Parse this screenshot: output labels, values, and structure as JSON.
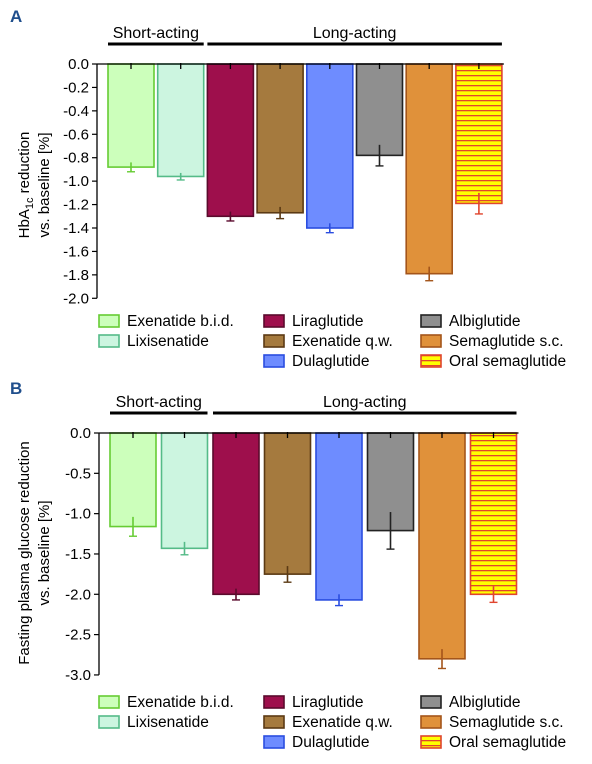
{
  "figure": {
    "panels": [
      {
        "letter": "A",
        "group_short": "Short-acting",
        "group_long": "Long-acting",
        "ylabel_line1": "HbA1c reduction",
        "ylabel_line2": "vs. baseline [%]"
      },
      {
        "letter": "B",
        "group_short": "Short-acting",
        "group_long": "Long-acting",
        "ylabel_line1": "Fasting plasma glucose reduction",
        "ylabel_line2": "vs. baseline [%]"
      }
    ]
  },
  "legend": [
    {
      "name": "Exenatide b.i.d.",
      "fill": "#ccffbb",
      "stroke": "#66cc33",
      "pattern": "solid"
    },
    {
      "name": "Lixisenatide",
      "fill": "#ccf5e0",
      "stroke": "#55bb88",
      "pattern": "solid"
    },
    {
      "name": "Liraglutide",
      "fill": "#9e0f4c",
      "stroke": "#5a0a2c",
      "pattern": "solid"
    },
    {
      "name": "Exenatide q.w.",
      "fill": "#a57a3e",
      "stroke": "#5b3a14",
      "pattern": "solid"
    },
    {
      "name": "Dulaglutide",
      "fill": "#6e8cff",
      "stroke": "#2a4de0",
      "pattern": "solid"
    },
    {
      "name": "Albiglutide",
      "fill": "#8f8f8f",
      "stroke": "#222222",
      "pattern": "solid"
    },
    {
      "name": "Semaglutide s.c.",
      "fill": "#e0913a",
      "stroke": "#a4551a",
      "pattern": "solid"
    },
    {
      "name": "Oral semaglutide",
      "fill": "#ffff00",
      "stroke": "#e0452e",
      "pattern": "hstripes"
    }
  ],
  "chart_data": [
    {
      "type": "bar",
      "title": "A",
      "xlabel": "",
      "ylabel": "HbA1c reduction vs. baseline [%]",
      "ylim": [
        -2.1,
        0.0
      ],
      "yticks": [
        "0.0",
        "-0.2",
        "-0.4",
        "-0.6",
        "-0.8",
        "-1.0",
        "-1.2",
        "-1.4",
        "-1.6",
        "-1.8",
        "-2.0"
      ],
      "ytick_values": [
        0.0,
        -0.2,
        -0.4,
        -0.6,
        -0.8,
        -1.0,
        -1.2,
        -1.4,
        -1.6,
        -1.8,
        -2.0
      ],
      "groups": [
        {
          "label": "Short-acting",
          "categories": [
            "Exenatide b.i.d.",
            "Lixisenatide"
          ]
        },
        {
          "label": "Long-acting",
          "categories": [
            "Liraglutide",
            "Exenatide q.w.",
            "Dulaglutide",
            "Albiglutide",
            "Semaglutide s.c.",
            "Oral semaglutide"
          ]
        }
      ],
      "categories": [
        "Exenatide b.i.d.",
        "Lixisenatide",
        "Liraglutide",
        "Exenatide q.w.",
        "Dulaglutide",
        "Albiglutide",
        "Semaglutide s.c.",
        "Oral semaglutide"
      ],
      "values": [
        -0.88,
        -0.96,
        -1.3,
        -1.27,
        -1.4,
        -0.78,
        -1.79,
        -1.19
      ],
      "errors": [
        0.04,
        0.03,
        0.04,
        0.05,
        0.04,
        0.09,
        0.06,
        0.09
      ],
      "grid": false,
      "legend": "bottom"
    },
    {
      "type": "bar",
      "title": "B",
      "xlabel": "",
      "ylabel": "Fasting plasma glucose reduction vs. baseline [%]",
      "ylim": [
        -3.1,
        0.0
      ],
      "yticks": [
        "0.0",
        "-0.5",
        "-1.0",
        "-1.5",
        "-2.0",
        "-2.5",
        "-3.0"
      ],
      "ytick_values": [
        0.0,
        -0.5,
        -1.0,
        -1.5,
        -2.0,
        -2.5,
        -3.0
      ],
      "groups": [
        {
          "label": "Short-acting",
          "categories": [
            "Exenatide b.i.d.",
            "Lixisenatide"
          ]
        },
        {
          "label": "Long-acting",
          "categories": [
            "Liraglutide",
            "Exenatide q.w.",
            "Dulaglutide",
            "Albiglutide",
            "Semaglutide s.c.",
            "Oral semaglutide"
          ]
        }
      ],
      "categories": [
        "Exenatide b.i.d.",
        "Lixisenatide",
        "Liraglutide",
        "Exenatide q.w.",
        "Dulaglutide",
        "Albiglutide",
        "Semaglutide s.c.",
        "Oral semaglutide"
      ],
      "values": [
        -1.16,
        -1.43,
        -2.0,
        -1.75,
        -2.07,
        -1.21,
        -2.8,
        -2.0
      ],
      "errors": [
        0.12,
        0.08,
        0.07,
        0.1,
        0.07,
        0.23,
        0.12,
        0.1
      ],
      "grid": false,
      "legend": "bottom"
    }
  ]
}
